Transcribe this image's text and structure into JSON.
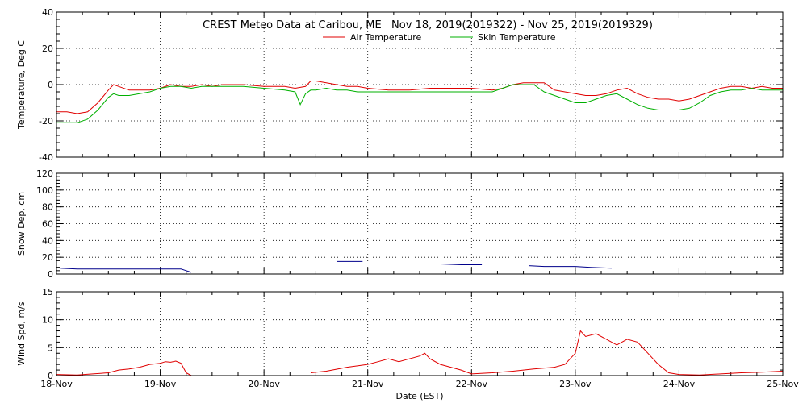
{
  "chart_data": {
    "type": "line",
    "title": "CREST Meteo Data at Caribou, ME   Nov 18, 2019(2019322) - Nov 25, 2019(2019329)",
    "xlabel": "Date (EST)",
    "x_ticks": [
      "18-Nov",
      "19-Nov",
      "20-Nov",
      "21-Nov",
      "22-Nov",
      "23-Nov",
      "24-Nov",
      "25-Nov"
    ],
    "xlim": [
      0,
      7
    ],
    "grid": true,
    "legend": "top-center",
    "panels": [
      {
        "id": "temperature",
        "ylabel": "Temperature, Deg C",
        "ylim": [
          -40,
          40
        ],
        "y_ticks": [
          -40,
          -20,
          0,
          20,
          40
        ],
        "series": [
          {
            "name": "Air Temperature",
            "color": "#e00000",
            "x": [
              0,
              0.1,
              0.2,
              0.3,
              0.4,
              0.5,
              0.55,
              0.6,
              0.7,
              0.8,
              0.9,
              1.0,
              1.1,
              1.2,
              1.3,
              1.4,
              1.5,
              1.6,
              1.8,
              2.0,
              2.2,
              2.3,
              2.4,
              2.45,
              2.5,
              2.6,
              2.7,
              2.8,
              2.9,
              3.0,
              3.2,
              3.4,
              3.6,
              3.8,
              4.0,
              4.2,
              4.3,
              4.4,
              4.5,
              4.6,
              4.7,
              4.8,
              4.9,
              5.0,
              5.1,
              5.2,
              5.3,
              5.4,
              5.5,
              5.6,
              5.7,
              5.8,
              5.9,
              6.0,
              6.1,
              6.2,
              6.3,
              6.4,
              6.5,
              6.6,
              6.7,
              6.8,
              6.9,
              7.0
            ],
            "values": [
              -15,
              -15,
              -16,
              -15,
              -10,
              -3,
              0,
              -1,
              -3,
              -3,
              -3,
              -2,
              0,
              -1,
              -1,
              0,
              -1,
              0,
              0,
              -1,
              -1,
              -2,
              -1,
              2,
              2,
              1,
              0,
              -1,
              -1,
              -2,
              -3,
              -3,
              -2,
              -2,
              -2,
              -3,
              -2,
              0,
              1,
              1,
              1,
              -3,
              -4,
              -5,
              -6,
              -6,
              -5,
              -3,
              -2,
              -5,
              -7,
              -8,
              -8,
              -9,
              -8,
              -6,
              -4,
              -2,
              -1,
              -1,
              -2,
              -1,
              -2,
              -2
            ]
          },
          {
            "name": "Skin Temperature",
            "color": "#00b000",
            "x": [
              0,
              0.1,
              0.2,
              0.3,
              0.4,
              0.5,
              0.55,
              0.6,
              0.7,
              0.8,
              0.9,
              1.0,
              1.1,
              1.2,
              1.3,
              1.4,
              1.5,
              1.6,
              1.8,
              2.0,
              2.2,
              2.3,
              2.35,
              2.4,
              2.45,
              2.5,
              2.6,
              2.7,
              2.8,
              2.9,
              3.0,
              3.2,
              3.4,
              3.6,
              3.8,
              4.0,
              4.2,
              4.3,
              4.4,
              4.5,
              4.6,
              4.7,
              4.8,
              4.9,
              5.0,
              5.1,
              5.2,
              5.3,
              5.4,
              5.5,
              5.6,
              5.7,
              5.8,
              5.9,
              6.0,
              6.1,
              6.2,
              6.3,
              6.4,
              6.5,
              6.6,
              6.7,
              6.8,
              6.9,
              7.0
            ],
            "values": [
              -21,
              -21,
              -21,
              -19,
              -14,
              -7,
              -5,
              -6,
              -6,
              -5,
              -4,
              -2,
              -1,
              -1,
              -2,
              -1,
              -1,
              -1,
              -1,
              -2,
              -3,
              -4,
              -11,
              -5,
              -3,
              -3,
              -2,
              -3,
              -3,
              -4,
              -4,
              -4,
              -4,
              -4,
              -4,
              -4,
              -4,
              -2,
              0,
              0,
              0,
              -4,
              -6,
              -8,
              -10,
              -10,
              -8,
              -6,
              -5,
              -8,
              -11,
              -13,
              -14,
              -14,
              -14,
              -13,
              -10,
              -6,
              -4,
              -3,
              -3,
              -2,
              -3,
              -3,
              -3
            ]
          }
        ]
      },
      {
        "id": "snow-depth",
        "ylabel": "Snow Dep, cm",
        "ylim": [
          0,
          120
        ],
        "y_ticks": [
          0,
          20,
          40,
          60,
          80,
          100,
          120
        ],
        "series": [
          {
            "color": "#00008b",
            "segments": [
              {
                "x": [
                  0.03,
                  0.2,
                  0.4,
                  0.6,
                  0.8,
                  1.0,
                  1.2,
                  1.25,
                  1.3
                ],
                "values": [
                  7,
                  6,
                  6,
                  6,
                  6,
                  6,
                  6,
                  4,
                  2
                ]
              },
              {
                "x": [
                  2.7,
                  2.8,
                  2.95
                ],
                "values": [
                  15,
                  15,
                  15
                ]
              },
              {
                "x": [
                  3.5,
                  3.7,
                  3.9,
                  4.1
                ],
                "values": [
                  12,
                  12,
                  11,
                  11
                ]
              },
              {
                "x": [
                  4.55,
                  4.7,
                  4.85,
                  5.0,
                  5.15,
                  5.35
                ],
                "values": [
                  10,
                  9,
                  9,
                  9,
                  8,
                  7
                ]
              }
            ]
          }
        ]
      },
      {
        "id": "wind-speed",
        "ylabel": "Wind Spd, m/s",
        "ylim": [
          0,
          15
        ],
        "y_ticks": [
          0,
          5,
          10,
          15
        ],
        "series": [
          {
            "color": "#e00000",
            "segments": [
              {
                "x": [
                  0,
                  0.2,
                  0.35,
                  0.5,
                  0.6,
                  0.7,
                  0.8,
                  0.9,
                  1.0,
                  1.05,
                  1.1,
                  1.15,
                  1.2,
                  1.25,
                  1.3
                ],
                "values": [
                  0.2,
                  0.1,
                  0.3,
                  0.5,
                  1.0,
                  1.2,
                  1.5,
                  2.0,
                  2.2,
                  2.5,
                  2.4,
                  2.6,
                  2.2,
                  0.5,
                  0
                ]
              },
              {
                "x": [
                  2.45,
                  2.6,
                  2.8,
                  3.0,
                  3.1,
                  3.2,
                  3.3,
                  3.4,
                  3.5,
                  3.55,
                  3.6,
                  3.7,
                  3.8,
                  3.9,
                  4.0,
                  4.2,
                  4.4,
                  4.6,
                  4.8,
                  4.9,
                  5.0,
                  5.05,
                  5.1,
                  5.2,
                  5.3,
                  5.4,
                  5.5,
                  5.6,
                  5.7,
                  5.8,
                  5.9,
                  6.0,
                  6.2,
                  6.4,
                  6.6,
                  6.8,
                  7.0
                ],
                "values": [
                  0.5,
                  0.8,
                  1.5,
                  2.0,
                  2.5,
                  3.0,
                  2.5,
                  3.0,
                  3.5,
                  4.0,
                  3.0,
                  2.0,
                  1.5,
                  1.0,
                  0.3,
                  0.5,
                  0.8,
                  1.2,
                  1.5,
                  2.0,
                  4.0,
                  8.0,
                  7.0,
                  7.5,
                  6.5,
                  5.5,
                  6.5,
                  6.0,
                  4.0,
                  2.0,
                  0.5,
                  0.2,
                  0.1,
                  0.3,
                  0.5,
                  0.6,
                  0.8
                ]
              }
            ]
          }
        ]
      }
    ]
  }
}
